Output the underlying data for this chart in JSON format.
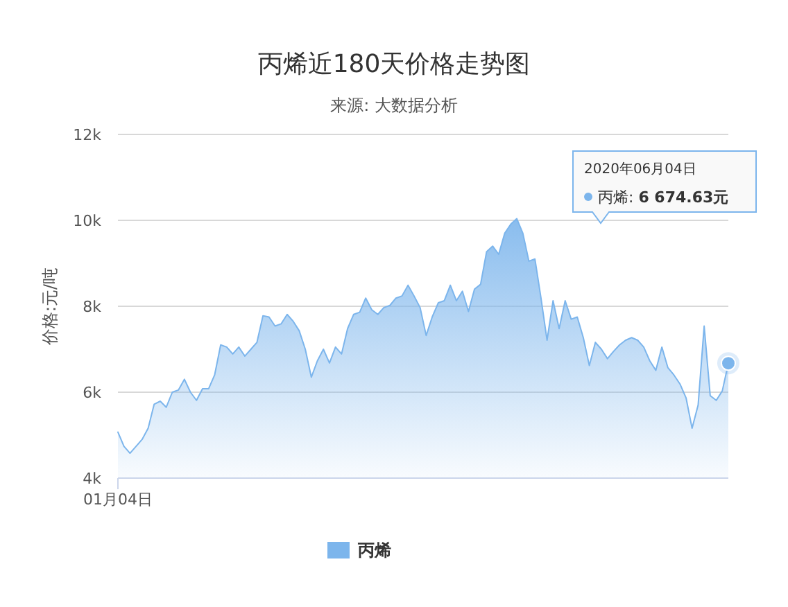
{
  "chart_data": {
    "type": "area",
    "title": "丙烯近180天价格走势图",
    "subtitle": "来源: 大数据分析",
    "ylabel": "价格:元/吨",
    "categories": [
      "01月04日",
      null,
      null,
      null,
      null,
      null,
      null,
      null,
      null,
      null,
      null,
      null,
      null,
      null,
      null,
      null,
      null,
      null,
      null,
      null,
      null,
      null,
      null,
      null,
      null,
      null,
      null,
      null,
      null,
      null,
      null,
      null,
      null,
      null,
      null,
      null,
      null,
      null,
      null,
      null,
      null,
      null,
      null,
      null,
      null,
      null,
      null,
      null,
      null,
      null,
      null,
      null,
      null,
      null,
      null,
      null,
      null,
      null,
      null,
      null,
      null,
      null,
      null,
      null,
      null,
      null,
      null,
      null,
      null,
      null,
      null,
      null,
      null,
      null,
      null,
      null,
      null,
      null,
      null,
      null,
      null,
      null,
      null,
      null,
      null,
      null,
      null,
      null,
      null,
      null,
      null,
      null,
      null,
      null,
      null,
      null,
      null,
      null,
      null,
      null,
      null,
      null
    ],
    "ylim": [
      4000,
      12000
    ],
    "yticks": [
      {
        "value": 4000,
        "label": "4k"
      },
      {
        "value": 6000,
        "label": "6k"
      },
      {
        "value": 8000,
        "label": "8k"
      },
      {
        "value": 10000,
        "label": "10k"
      },
      {
        "value": 12000,
        "label": "12k"
      }
    ],
    "grid": "y",
    "legend": "bottom",
    "annotations": [
      "2020年06月04日",
      "丙烯: 6 674.63元"
    ],
    "series": [
      {
        "name": "丙烯",
        "color": "#7cb5ec",
        "values": [
          5070,
          4740,
          4580,
          4740,
          4900,
          5160,
          5720,
          5790,
          5650,
          6000,
          6050,
          6300,
          6000,
          5810,
          6080,
          6080,
          6400,
          7100,
          7050,
          6890,
          7050,
          6840,
          7000,
          7160,
          7780,
          7750,
          7540,
          7590,
          7810,
          7650,
          7430,
          7000,
          6350,
          6730,
          7000,
          6680,
          7050,
          6890,
          7480,
          7810,
          7860,
          8190,
          7920,
          7810,
          7970,
          8020,
          8190,
          8240,
          8490,
          8240,
          7970,
          7320,
          7750,
          8080,
          8130,
          8490,
          8130,
          8350,
          7880,
          8400,
          8510,
          9270,
          9400,
          9210,
          9700,
          9910,
          10040,
          9700,
          9050,
          9100,
          8190,
          7210,
          8130,
          7480,
          8130,
          7700,
          7750,
          7270,
          6620,
          7160,
          7000,
          6780,
          6950,
          7100,
          7210,
          7270,
          7210,
          7050,
          6730,
          6510,
          7050,
          6570,
          6400,
          6190,
          5870,
          5160,
          5700,
          7540,
          5920,
          5810,
          6030,
          6674.63
        ]
      }
    ]
  }
}
